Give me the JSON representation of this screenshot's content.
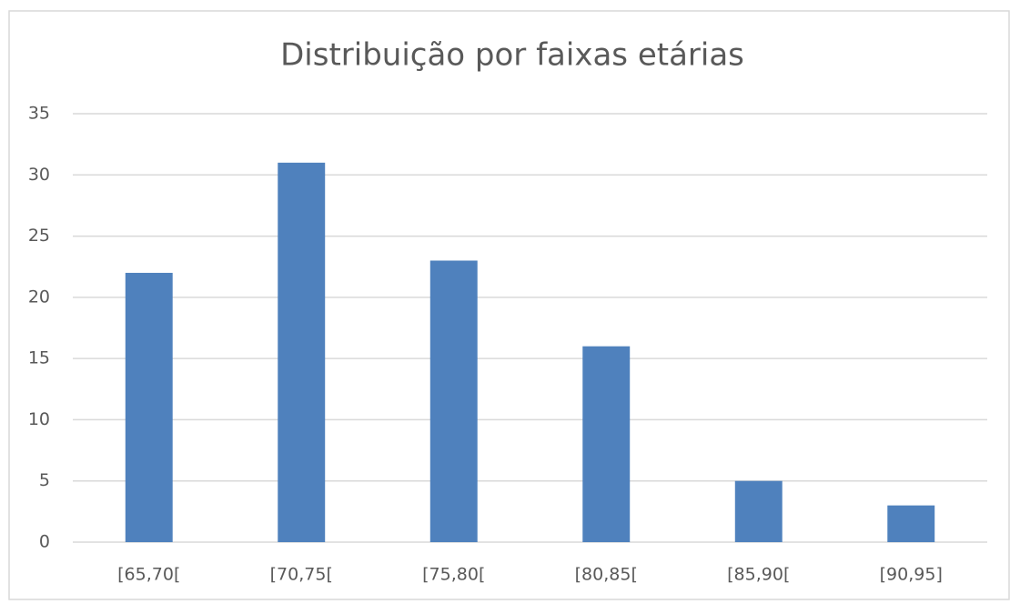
{
  "chart_data": {
    "type": "bar",
    "title": "Distribuição por faixas etárias",
    "categories": [
      "[65,70[",
      "[70,75[",
      "[75,80[",
      "[80,85[",
      "[85,90[",
      "[90,95]"
    ],
    "values": [
      22,
      31,
      23,
      16,
      5,
      3
    ],
    "color": "#4f81bd",
    "ylim": [
      0,
      35
    ],
    "yticks": [
      0,
      5,
      10,
      15,
      20,
      25,
      30,
      35
    ],
    "grid": true
  }
}
